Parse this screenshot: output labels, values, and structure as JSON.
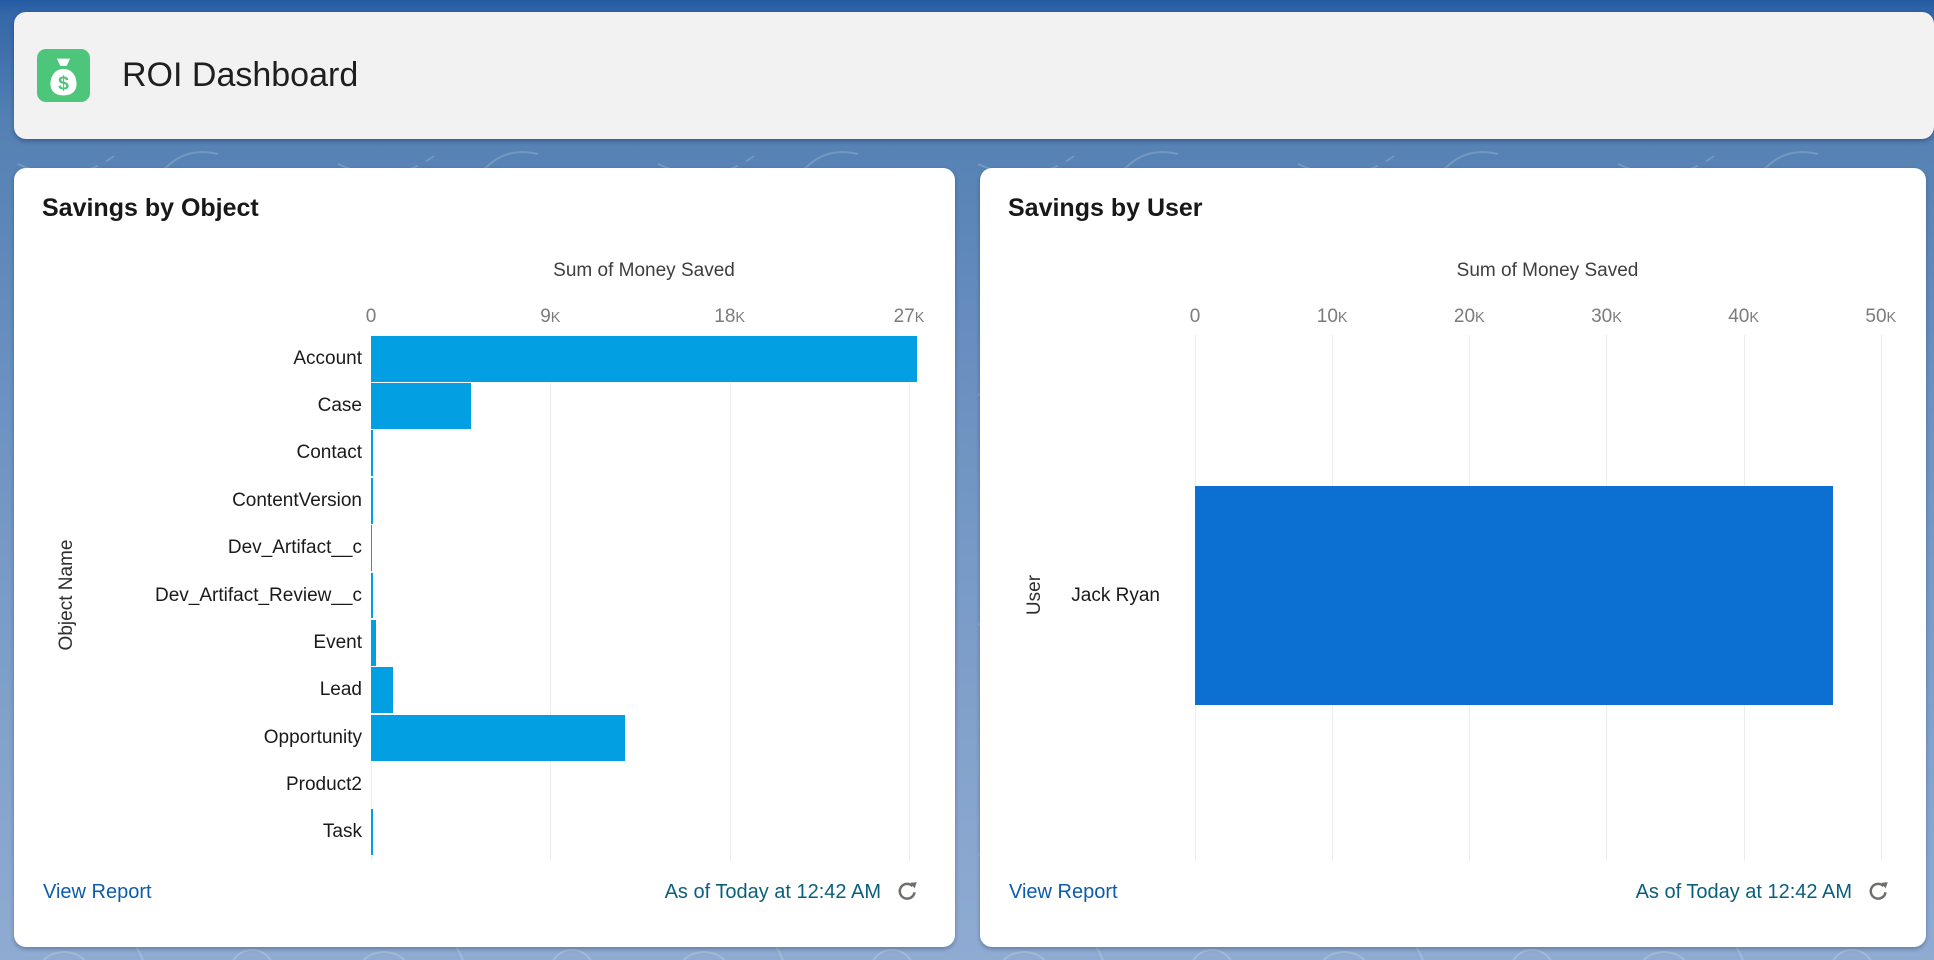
{
  "header": {
    "title": "ROI Dashboard",
    "icon": "money-bag",
    "icon_background": "#4DC67C"
  },
  "chart_data": [
    {
      "type": "bar",
      "orientation": "horizontal",
      "title": "Savings by Object",
      "xlabel": "Sum of Money Saved",
      "ylabel": "Object Name",
      "categories": [
        "Account",
        "Case",
        "Contact",
        "ContentVersion",
        "Dev_Artifact__c",
        "Dev_Artifact_Review__c",
        "Event",
        "Lead",
        "Opportunity",
        "Product2",
        "Task"
      ],
      "values": [
        27400,
        5000,
        120,
        120,
        60,
        100,
        250,
        1100,
        12750,
        0,
        100
      ],
      "xlim": [
        0,
        27400
      ],
      "xticks": [
        {
          "label": "0",
          "value": 0
        },
        {
          "label": "9K",
          "value": 9000
        },
        {
          "label": "18K",
          "value": 18000
        },
        {
          "label": "27K",
          "value": 27000
        }
      ],
      "grid": true,
      "legend": false,
      "bar_color": "#02A0E2",
      "bar_thickness": 0.97,
      "footer": {
        "view_report_label": "View Report",
        "as_of_text": "As of Today at 12:42 AM"
      }
    },
    {
      "type": "bar",
      "orientation": "horizontal",
      "title": "Savings by User",
      "xlabel": "Sum of Money Saved",
      "ylabel": "User",
      "categories": [
        "Jack Ryan"
      ],
      "values": [
        46500
      ],
      "xlim": [
        0,
        51400
      ],
      "xticks": [
        {
          "label": "0",
          "value": 0
        },
        {
          "label": "10K",
          "value": 10000
        },
        {
          "label": "20K",
          "value": 20000
        },
        {
          "label": "30K",
          "value": 30000
        },
        {
          "label": "40K",
          "value": 40000
        },
        {
          "label": "50K",
          "value": 50000
        }
      ],
      "grid": true,
      "legend": false,
      "bar_color": "#0B70D1",
      "bar_thickness": 0.42,
      "footer": {
        "view_report_label": "View Report",
        "as_of_text": "As of Today at 12:42 AM"
      }
    }
  ],
  "colors": {
    "page_background_top": "#235CA3",
    "page_background_bottom": "#8FABD2",
    "header_background": "#F3F2F2",
    "card_background": "#FFFFFF",
    "link_blue": "#0B5CAB",
    "timestamp_teal": "#0A5F7D",
    "tick_label_gray": "#7B7B7B",
    "category_label": "#1A1A1A",
    "gridline": "#ECECEC",
    "object_bar_blue": "#02A0E2",
    "user_bar_blue": "#0B70D1",
    "icon_green": "#4DC67C"
  }
}
